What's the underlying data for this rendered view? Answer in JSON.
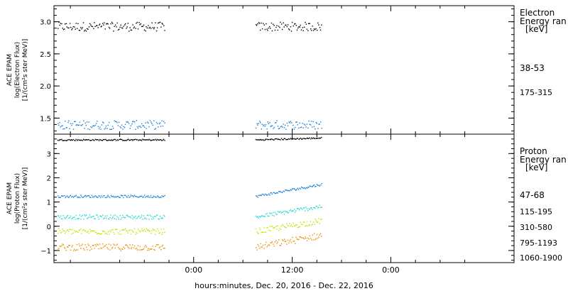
{
  "xlabel": "hours:minutes, Dec. 20, 2016 - Dec. 22, 2016",
  "x_ticks": [
    "0:00",
    "12:00",
    "0:00"
  ],
  "chart_data": [
    {
      "type": "scatter",
      "panel": "electron",
      "ylabel_lines": [
        "ACE EPAM",
        "log(Electron Flux)",
        "[1/(cm²s ster MeV)]"
      ],
      "ylim": [
        1.25,
        3.25
      ],
      "y_ticks": [
        1.5,
        2.0,
        2.5,
        3.0
      ],
      "y_tick_labels": [
        "1.5",
        "2.0",
        "2.5",
        "3.0"
      ],
      "legend_title": [
        "Electron",
        "Energy ran",
        "[keV]"
      ],
      "x_hours": [
        -17,
        39
      ],
      "gap_hours": [
        -3.5,
        7.5
      ],
      "series": [
        {
          "name": "38-53",
          "color": "#000000",
          "mean": 2.93,
          "spread": 0.07,
          "trend": 0.0
        },
        {
          "name": "175-315",
          "color": "#1a7fd6",
          "mean": 1.4,
          "spread": 0.07,
          "trend": 0.0
        }
      ]
    },
    {
      "type": "scatter",
      "panel": "proton",
      "ylabel_lines": [
        "ACE EPAM",
        "log(Proton Flux)",
        "[1/(cm²s ster MeV)]"
      ],
      "ylim": [
        -1.5,
        3.8
      ],
      "y_ticks": [
        -1,
        0,
        1,
        2,
        3
      ],
      "y_tick_labels": [
        "−1",
        "0",
        "1",
        "2",
        "3"
      ],
      "legend_title": [
        "Proton",
        "Energy ran",
        "[keV]"
      ],
      "x_hours": [
        -17,
        39
      ],
      "gap_hours": [
        -3.5,
        7.5
      ],
      "series": [
        {
          "name": "47-68",
          "color": "#000000",
          "mean": 3.58,
          "spread": 0.03,
          "trend": 0.08
        },
        {
          "name": "115-195",
          "color": "#1a7fd6",
          "mean": 1.25,
          "spread": 0.05,
          "trend": 0.5
        },
        {
          "name": "310-580",
          "color": "#22d8d0",
          "mean": 0.4,
          "spread": 0.09,
          "trend": 0.45
        },
        {
          "name": "795-1193",
          "color": "#c8e000",
          "mean": -0.2,
          "spread": 0.12,
          "trend": 0.45
        },
        {
          "name": "1060-1900",
          "color": "#f08a00",
          "mean": -0.85,
          "spread": 0.14,
          "trend": 0.5
        }
      ]
    }
  ]
}
